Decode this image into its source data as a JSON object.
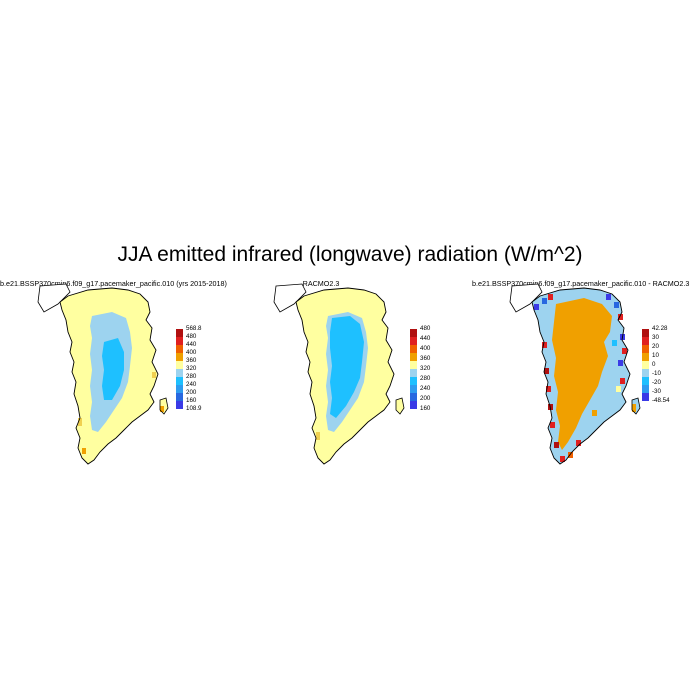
{
  "title": "JJA emitted infrared (longwave) radiation (W/m^2)",
  "colors": {
    "abs": [
      "#3a3ae6",
      "#2868e0",
      "#2e9cf0",
      "#1ec0ff",
      "#9dd3ef",
      "#ffffa0",
      "#f0d050",
      "#f0a000",
      "#f06000",
      "#e02020",
      "#b01010"
    ],
    "diff": [
      "#3a3ae6",
      "#2868e0",
      "#2e9cf0",
      "#1ec0ff",
      "#9dd3ef",
      "#ffffa0",
      "#f0a000",
      "#f06000",
      "#e02020",
      "#b01010"
    ],
    "coast": "#000000"
  },
  "panels": [
    {
      "title": "b.e21.BSSP370cmip6.f09_g17.pacemaker_pacific.010 (yrs 2015-2018)",
      "style": "model",
      "colorbar": {
        "labels": [
          "568.8",
          "480",
          "440",
          "400",
          "360",
          "320",
          "280",
          "240",
          "200",
          "160",
          "108.9"
        ],
        "colors": [
          "#b01010",
          "#e02020",
          "#f06000",
          "#f0a000",
          "#ffffa0",
          "#9dd3ef",
          "#1ec0ff",
          "#2e9cf0",
          "#2868e0",
          "#3a3ae6"
        ]
      }
    },
    {
      "title": "RACMO2.3",
      "style": "racmo",
      "colorbar": {
        "labels": [
          "480",
          "440",
          "400",
          "360",
          "320",
          "280",
          "240",
          "200",
          "160"
        ],
        "colors": [
          "#b01010",
          "#e02020",
          "#f06000",
          "#f0a000",
          "#ffffa0",
          "#9dd3ef",
          "#1ec0ff",
          "#2e9cf0",
          "#2868e0",
          "#3a3ae6"
        ]
      }
    },
    {
      "title": "b.e21.BSSP370cmip6.f09_g17.pacemaker_pacific.010 - RACMO2.3",
      "style": "diff",
      "colorbar": {
        "labels": [
          "42.28",
          "30",
          "20",
          "10",
          "0",
          "-10",
          "-20",
          "-30",
          "-48.54"
        ],
        "colors": [
          "#b01010",
          "#e02020",
          "#f06000",
          "#f0a000",
          "#ffffa0",
          "#9dd3ef",
          "#1ec0ff",
          "#2e9cf0",
          "#3a3ae6"
        ]
      }
    }
  ]
}
